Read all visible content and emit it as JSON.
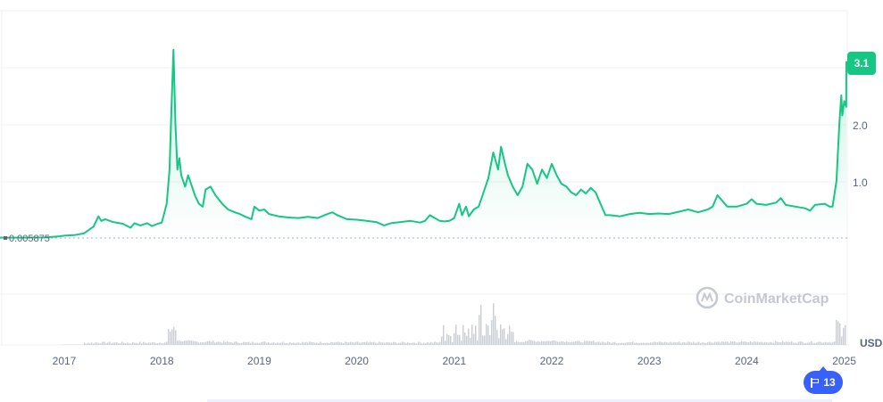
{
  "chart_data": {
    "type": "area",
    "y_axis_labels": [
      "1.0",
      "2.0"
    ],
    "baseline_label": "0.005875",
    "x_tick_labels": [
      "2017",
      "2018",
      "2019",
      "2020",
      "2021",
      "2022",
      "2023",
      "2024",
      "2025"
    ],
    "ylim": [
      0,
      3.6
    ],
    "xlim": [
      2016.0,
      2025.0
    ],
    "unit_label": "USD",
    "current_value_label": "3.1",
    "watermark": "CoinMarketCap",
    "events_count": "13",
    "line_color": "#16c784",
    "volume_color": "#c9cdd4",
    "series": [
      {
        "values": [
          [
            2016.1,
            0.006
          ],
          [
            2016.35,
            0.006
          ],
          [
            2016.6,
            0.006
          ],
          [
            2016.8,
            0.01
          ],
          [
            2016.95,
            0.03
          ],
          [
            2017.0,
            0.04
          ],
          [
            2017.1,
            0.05
          ],
          [
            2017.2,
            0.08
          ],
          [
            2017.3,
            0.2
          ],
          [
            2017.35,
            0.38
          ],
          [
            2017.38,
            0.3
          ],
          [
            2017.42,
            0.33
          ],
          [
            2017.5,
            0.28
          ],
          [
            2017.6,
            0.25
          ],
          [
            2017.68,
            0.18
          ],
          [
            2017.72,
            0.26
          ],
          [
            2017.78,
            0.22
          ],
          [
            2017.85,
            0.26
          ],
          [
            2017.9,
            0.21
          ],
          [
            2017.96,
            0.25
          ],
          [
            2018.0,
            0.27
          ],
          [
            2018.05,
            0.6
          ],
          [
            2018.08,
            1.2
          ],
          [
            2018.1,
            2.3
          ],
          [
            2018.12,
            3.3
          ],
          [
            2018.14,
            2.0
          ],
          [
            2018.16,
            1.2
          ],
          [
            2018.18,
            1.4
          ],
          [
            2018.2,
            1.1
          ],
          [
            2018.24,
            0.9
          ],
          [
            2018.27,
            1.1
          ],
          [
            2018.3,
            0.95
          ],
          [
            2018.34,
            0.75
          ],
          [
            2018.38,
            0.6
          ],
          [
            2018.42,
            0.55
          ],
          [
            2018.45,
            0.85
          ],
          [
            2018.5,
            0.9
          ],
          [
            2018.55,
            0.75
          ],
          [
            2018.62,
            0.6
          ],
          [
            2018.68,
            0.5
          ],
          [
            2018.75,
            0.45
          ],
          [
            2018.8,
            0.42
          ],
          [
            2018.85,
            0.38
          ],
          [
            2018.92,
            0.33
          ],
          [
            2018.95,
            0.55
          ],
          [
            2019.0,
            0.48
          ],
          [
            2019.05,
            0.5
          ],
          [
            2019.1,
            0.42
          ],
          [
            2019.2,
            0.38
          ],
          [
            2019.3,
            0.36
          ],
          [
            2019.4,
            0.35
          ],
          [
            2019.5,
            0.37
          ],
          [
            2019.6,
            0.35
          ],
          [
            2019.7,
            0.42
          ],
          [
            2019.75,
            0.45
          ],
          [
            2019.8,
            0.4
          ],
          [
            2019.9,
            0.33
          ],
          [
            2020.0,
            0.32
          ],
          [
            2020.1,
            0.3
          ],
          [
            2020.2,
            0.28
          ],
          [
            2020.28,
            0.22
          ],
          [
            2020.35,
            0.26
          ],
          [
            2020.45,
            0.28
          ],
          [
            2020.55,
            0.3
          ],
          [
            2020.65,
            0.27
          ],
          [
            2020.7,
            0.3
          ],
          [
            2020.75,
            0.4
          ],
          [
            2020.8,
            0.35
          ],
          [
            2020.85,
            0.3
          ],
          [
            2020.9,
            0.29
          ],
          [
            2020.95,
            0.3
          ],
          [
            2021.0,
            0.35
          ],
          [
            2021.05,
            0.6
          ],
          [
            2021.08,
            0.4
          ],
          [
            2021.12,
            0.55
          ],
          [
            2021.15,
            0.38
          ],
          [
            2021.2,
            0.5
          ],
          [
            2021.25,
            0.55
          ],
          [
            2021.3,
            0.8
          ],
          [
            2021.35,
            1.05
          ],
          [
            2021.4,
            1.5
          ],
          [
            2021.45,
            1.2
          ],
          [
            2021.48,
            1.6
          ],
          [
            2021.52,
            1.3
          ],
          [
            2021.55,
            1.1
          ],
          [
            2021.6,
            0.9
          ],
          [
            2021.65,
            0.75
          ],
          [
            2021.7,
            0.9
          ],
          [
            2021.75,
            1.3
          ],
          [
            2021.8,
            1.2
          ],
          [
            2021.85,
            0.95
          ],
          [
            2021.9,
            1.2
          ],
          [
            2021.95,
            1.05
          ],
          [
            2022.0,
            1.3
          ],
          [
            2022.05,
            1.1
          ],
          [
            2022.1,
            0.95
          ],
          [
            2022.15,
            0.9
          ],
          [
            2022.2,
            0.8
          ],
          [
            2022.25,
            0.75
          ],
          [
            2022.3,
            0.85
          ],
          [
            2022.35,
            0.78
          ],
          [
            2022.4,
            0.88
          ],
          [
            2022.45,
            0.8
          ],
          [
            2022.5,
            0.6
          ],
          [
            2022.55,
            0.4
          ],
          [
            2022.6,
            0.4
          ],
          [
            2022.7,
            0.38
          ],
          [
            2022.8,
            0.42
          ],
          [
            2022.9,
            0.44
          ],
          [
            2023.0,
            0.42
          ],
          [
            2023.1,
            0.43
          ],
          [
            2023.2,
            0.42
          ],
          [
            2023.3,
            0.46
          ],
          [
            2023.4,
            0.5
          ],
          [
            2023.5,
            0.45
          ],
          [
            2023.6,
            0.5
          ],
          [
            2023.65,
            0.55
          ],
          [
            2023.7,
            0.75
          ],
          [
            2023.75,
            0.65
          ],
          [
            2023.8,
            0.55
          ],
          [
            2023.9,
            0.55
          ],
          [
            2024.0,
            0.6
          ],
          [
            2024.05,
            0.68
          ],
          [
            2024.1,
            0.6
          ],
          [
            2024.2,
            0.58
          ],
          [
            2024.3,
            0.62
          ],
          [
            2024.35,
            0.7
          ],
          [
            2024.4,
            0.58
          ],
          [
            2024.5,
            0.55
          ],
          [
            2024.6,
            0.52
          ],
          [
            2024.65,
            0.48
          ],
          [
            2024.7,
            0.58
          ],
          [
            2024.8,
            0.6
          ],
          [
            2024.85,
            0.55
          ],
          [
            2024.88,
            0.55
          ],
          [
            2024.92,
            1.0
          ],
          [
            2024.95,
            2.0
          ],
          [
            2024.97,
            2.5
          ],
          [
            2024.98,
            2.15
          ],
          [
            2025.0,
            2.4
          ],
          [
            2025.02,
            2.3
          ],
          [
            2025.04,
            3.1
          ]
        ]
      }
    ]
  }
}
